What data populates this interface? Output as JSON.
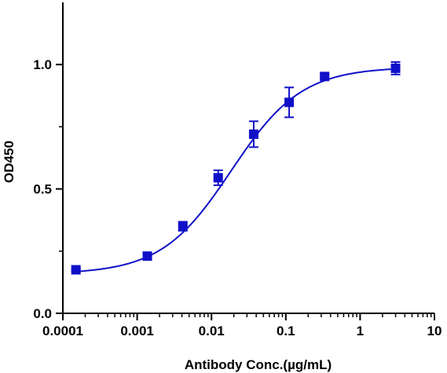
{
  "chart_data": {
    "type": "scatter",
    "title": "",
    "xlabel": "Antibody Conc.(µg/mL)",
    "ylabel": "OD450",
    "x_scale": "log",
    "xlim": [
      0.0001,
      10
    ],
    "ylim": [
      0.0,
      1.25
    ],
    "x_ticks": [
      0.0001,
      0.001,
      0.01,
      0.1,
      1,
      10
    ],
    "x_tick_labels": [
      "0.0001",
      "0.001",
      "0.01",
      "0.1",
      "1",
      "10"
    ],
    "y_ticks": [
      0.0,
      0.5,
      1.0
    ],
    "y_tick_labels": [
      "0.0",
      "0.5",
      "1.0"
    ],
    "grid": false,
    "legend": false,
    "color": "#1010c8",
    "series": [
      {
        "x": [
          0.00015,
          0.00137,
          0.00412,
          0.0123,
          0.037,
          0.111,
          0.333,
          3.0
        ],
        "y": [
          0.175,
          0.23,
          0.35,
          0.545,
          0.72,
          0.848,
          0.952,
          0.985
        ],
        "error": [
          0.005,
          0.008,
          0.018,
          0.03,
          0.052,
          0.06,
          0.01,
          0.025
        ]
      }
    ],
    "fit_curve": {
      "model": "4PL",
      "bottom": 0.158,
      "top": 0.99,
      "ec50": 0.0185,
      "hill": 0.92
    }
  }
}
